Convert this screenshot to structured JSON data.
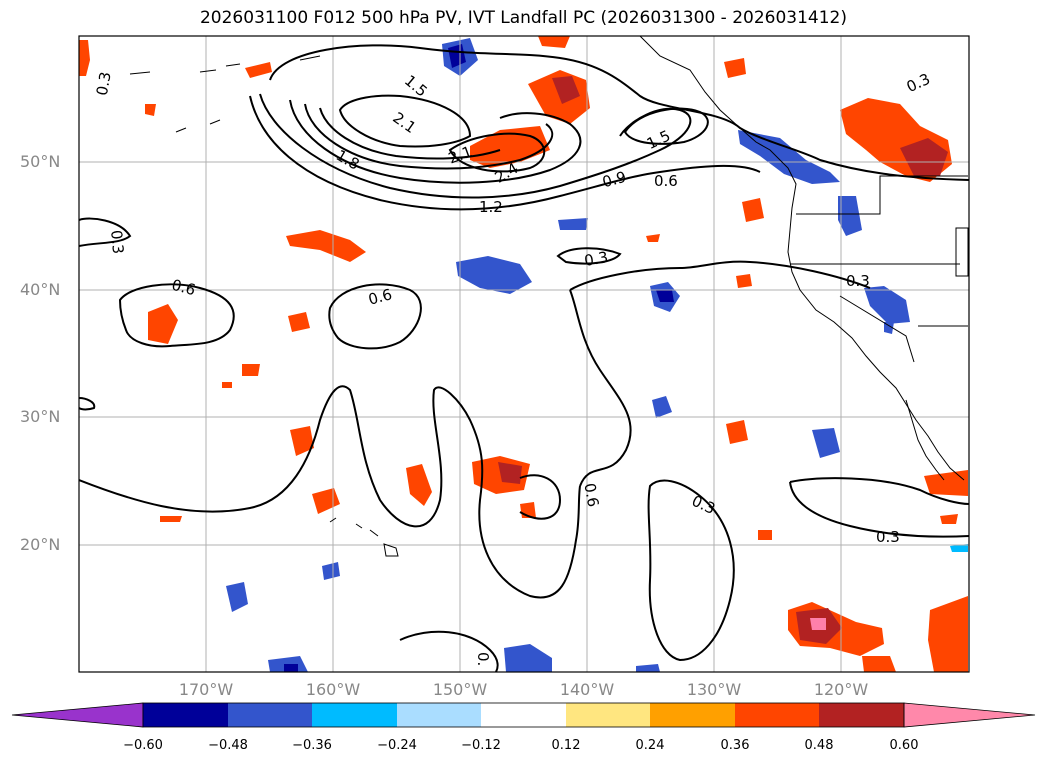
{
  "title": "2026031100 F012 500 hPa PV, IVT Landfall PC (2026031300 - 2026031412)",
  "lat_labels": [
    "50°N",
    "40°N",
    "30°N",
    "20°N"
  ],
  "lon_labels": [
    "170°W",
    "160°W",
    "150°W",
    "140°W",
    "130°W",
    "120°W"
  ],
  "colorbar": {
    "colors": [
      "#9933cc",
      "#000099",
      "#3355cc",
      "#00bbff",
      "#aaddff",
      "#ffffff",
      "#ffe680",
      "#ffa000",
      "#ff4500",
      "#b22222",
      "#ff80aa",
      "#ff88aa"
    ],
    "ticks": [
      "−0.60",
      "−0.48",
      "−0.36",
      "−0.24",
      "−0.12",
      "0.12",
      "0.24",
      "0.36",
      "0.48",
      "0.60"
    ]
  },
  "contour_labels": [
    "0.3",
    "1.5",
    "2.1",
    "1.8",
    "2.1",
    "2.4",
    "1.5",
    "0.9",
    "0.6",
    "1.2",
    "0.3",
    "0.6",
    "0.6",
    "0.3",
    "0.3",
    "0.6",
    "0.3",
    "0.3",
    "0.",
    "0.3"
  ],
  "map": {
    "lat_range": [
      10,
      60
    ],
    "lon_range": [
      -180,
      -110
    ]
  }
}
